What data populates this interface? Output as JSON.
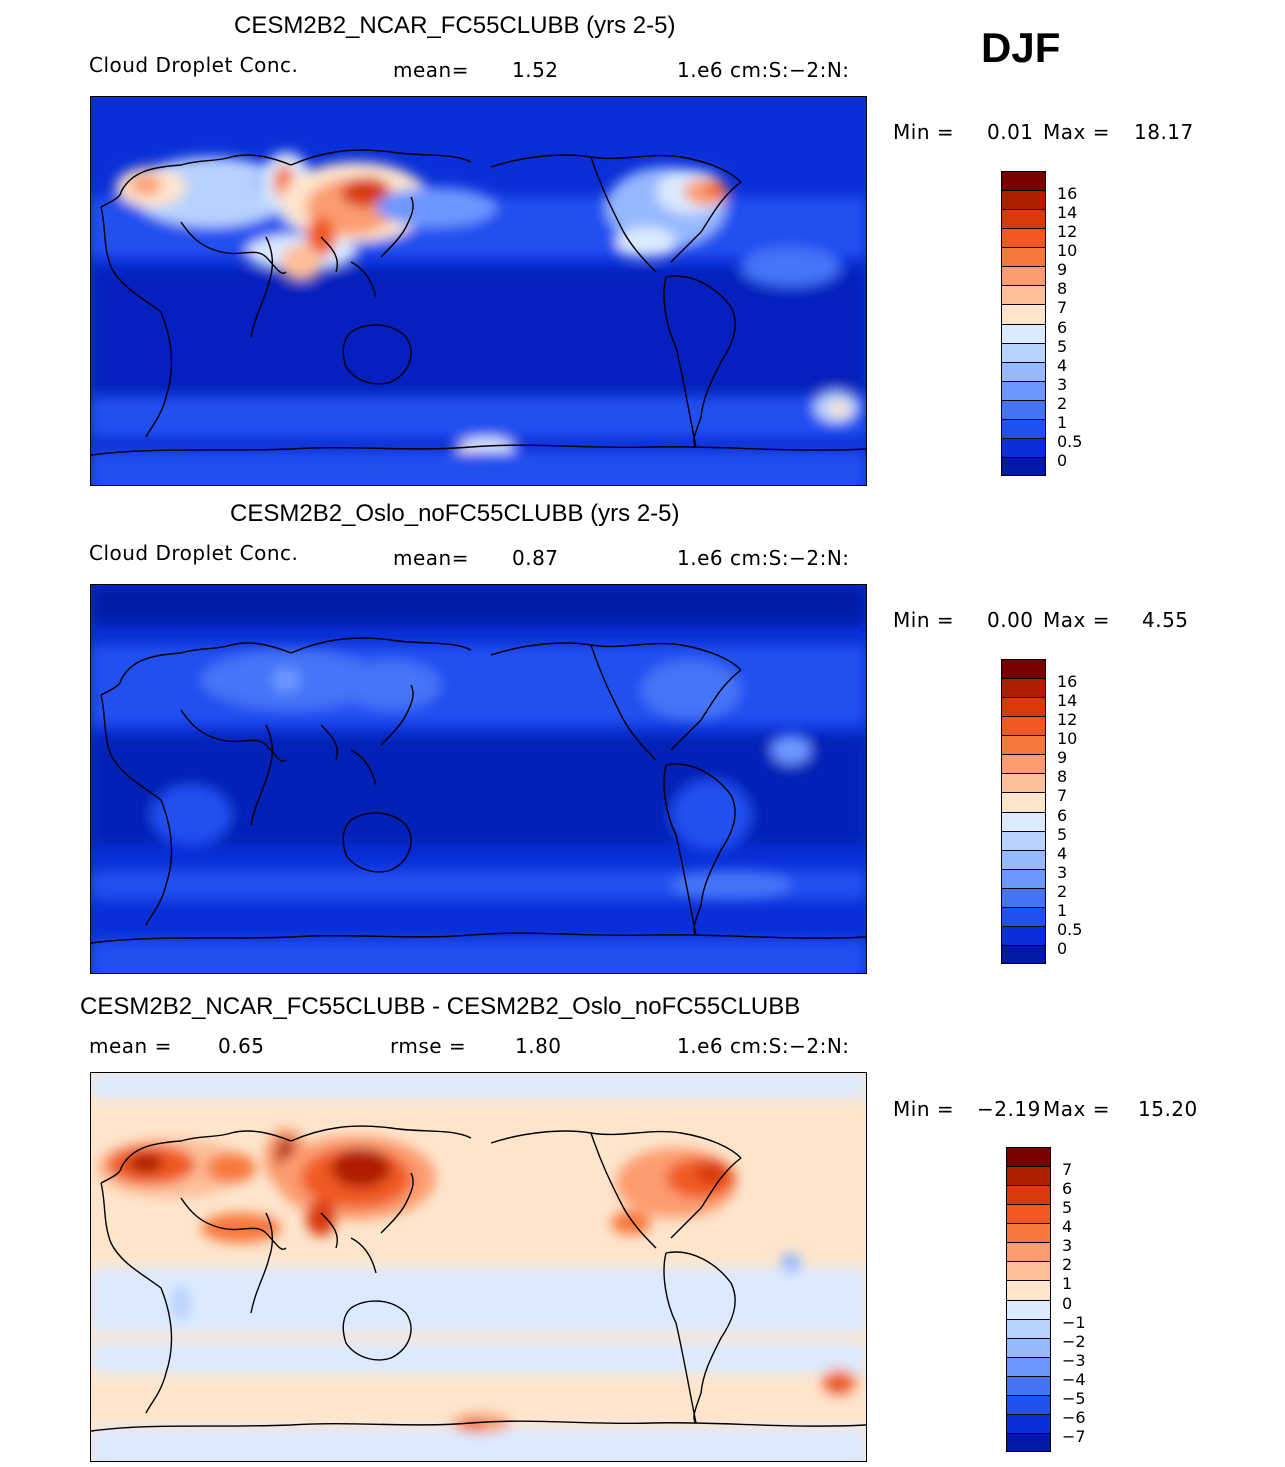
{
  "season": "DJF",
  "chart_data": [
    {
      "type": "heatmap",
      "title": "CESM2B2_NCAR_FC55CLUBB (yrs 2-5)",
      "variable": "Cloud Droplet Conc.",
      "stat_label": "mean=",
      "stat_value": "1.52",
      "units": "1.e6 cm:S:−2:N:",
      "min_label": "Min =",
      "min_value": "0.01",
      "max_label": "Max =",
      "max_value": "18.17",
      "colorbar_levels": [
        "16",
        "14",
        "12",
        "10",
        "9",
        "8",
        "7",
        "6",
        "5",
        "4",
        "3",
        "2",
        "1",
        "0.5",
        "0"
      ],
      "colors": [
        "#7a0000",
        "#b01e00",
        "#d83a08",
        "#f05a20",
        "#f8783c",
        "#fc9c70",
        "#fdbf9a",
        "#fde5cc",
        "#dbeaff",
        "#b8d2ff",
        "#95b8ff",
        "#6d97ff",
        "#4474f8",
        "#2050f0",
        "#0a2fd8",
        "#001aa8"
      ]
    },
    {
      "type": "heatmap",
      "title": "CESM2B2_Oslo_noFC55CLUBB (yrs 2-5)",
      "variable": "Cloud Droplet Conc.",
      "stat_label": "mean=",
      "stat_value": "0.87",
      "units": "1.e6 cm:S:−2:N:",
      "min_label": "Min =",
      "min_value": "0.00",
      "max_label": "Max =",
      "max_value": "4.55",
      "colorbar_levels": [
        "16",
        "14",
        "12",
        "10",
        "9",
        "8",
        "7",
        "6",
        "5",
        "4",
        "3",
        "2",
        "1",
        "0.5",
        "0"
      ],
      "colors": [
        "#7a0000",
        "#b01e00",
        "#d83a08",
        "#f05a20",
        "#f8783c",
        "#fc9c70",
        "#fdbf9a",
        "#fde5cc",
        "#dbeaff",
        "#b8d2ff",
        "#95b8ff",
        "#6d97ff",
        "#4474f8",
        "#2050f0",
        "#0a2fd8",
        "#001aa8"
      ]
    },
    {
      "type": "heatmap",
      "title": "CESM2B2_NCAR_FC55CLUBB - CESM2B2_Oslo_noFC55CLUBB",
      "mean_label": "mean =",
      "mean_value": "0.65",
      "rmse_label": "rmse =",
      "rmse_value": "1.80",
      "units": "1.e6 cm:S:−2:N:",
      "min_label": "Min =",
      "min_value": "−2.19",
      "max_label": "Max =",
      "max_value": "15.20",
      "colorbar_levels": [
        "7",
        "6",
        "5",
        "4",
        "3",
        "2",
        "1",
        "0",
        "−1",
        "−2",
        "−3",
        "−4",
        "−5",
        "−6",
        "−7"
      ],
      "colors": [
        "#7a0000",
        "#b01e00",
        "#d83a08",
        "#f05a20",
        "#f8783c",
        "#fc9c70",
        "#fdbf9a",
        "#fde5cc",
        "#dbeaff",
        "#b8d2ff",
        "#95b8ff",
        "#6d97ff",
        "#4474f8",
        "#2050f0",
        "#0a2fd8",
        "#001aa8"
      ]
    }
  ]
}
